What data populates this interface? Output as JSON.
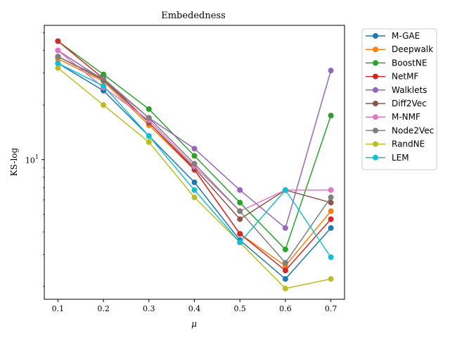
{
  "chart_data": {
    "type": "line",
    "title": "Embededness",
    "xlabel": "μ",
    "ylabel": "KS-log",
    "x": [
      0.1,
      0.2,
      0.3,
      0.4,
      0.5,
      0.6,
      0.7
    ],
    "xticks": [
      "0.1",
      "0.2",
      "0.3",
      "0.4",
      "0.5",
      "0.6",
      "0.7"
    ],
    "y_scale": "log",
    "ylim": [
      1.7,
      55
    ],
    "yticks": [
      {
        "value": 10,
        "base": "10",
        "exp": "1"
      }
    ],
    "grid": false,
    "legend_position": "outside-right",
    "series": [
      {
        "name": "M-GAE",
        "color": "#1f77b4",
        "values": [
          34,
          24,
          13.5,
          7.5,
          3.6,
          2.2,
          4.2
        ]
      },
      {
        "name": "Deepwalk",
        "color": "#ff7f0e",
        "values": [
          36,
          27,
          15.5,
          8.8,
          3.9,
          2.6,
          5.2
        ]
      },
      {
        "name": "BoostNE",
        "color": "#2ca02c",
        "values": [
          45,
          29.5,
          19,
          10.5,
          5.8,
          3.2,
          17.5
        ]
      },
      {
        "name": "NetMF",
        "color": "#d62728",
        "values": [
          45,
          28,
          16,
          8.8,
          3.9,
          2.45,
          4.7
        ]
      },
      {
        "name": "Walklets",
        "color": "#9467bd",
        "values": [
          40,
          27.5,
          17,
          11.5,
          6.8,
          4.2,
          31
        ]
      },
      {
        "name": "Diff2Vec",
        "color": "#8c564b",
        "values": [
          37,
          27.5,
          16,
          9,
          4.7,
          6.8,
          5.8
        ]
      },
      {
        "name": "M-NMF",
        "color": "#e377c2",
        "values": [
          40,
          25,
          16.5,
          9.2,
          5.2,
          6.8,
          6.8
        ]
      },
      {
        "name": "Node2Vec",
        "color": "#7f7f7f",
        "values": [
          37,
          28,
          17,
          9.5,
          5.2,
          2.7,
          6.2
        ]
      },
      {
        "name": "RandNE",
        "color": "#bcbd22",
        "values": [
          32,
          20,
          12.5,
          6.2,
          3.5,
          1.95,
          2.2
        ]
      },
      {
        "name": "LEM",
        "color": "#17becf",
        "values": [
          34,
          25.5,
          13.5,
          6.8,
          3.5,
          6.8,
          2.9
        ]
      }
    ]
  }
}
